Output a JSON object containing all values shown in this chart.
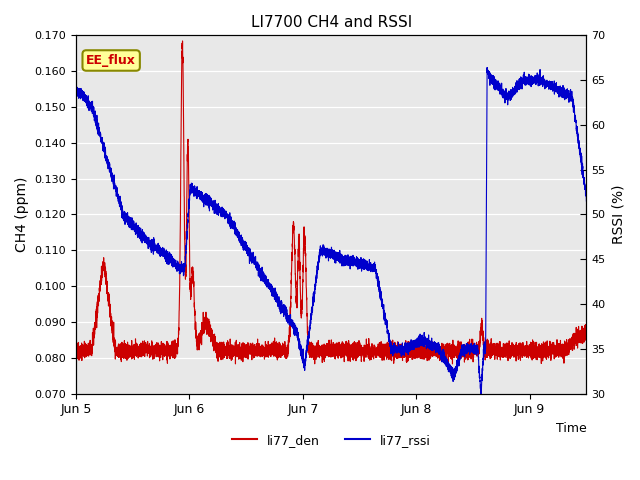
{
  "title": "LI7700 CH4 and RSSI",
  "ylabel_left": "CH4 (ppm)",
  "ylabel_right": "RSSI (%)",
  "xlabel": "Time",
  "ylim_left": [
    0.07,
    0.17
  ],
  "ylim_right": [
    30,
    70
  ],
  "yticks_left": [
    0.07,
    0.08,
    0.09,
    0.1,
    0.11,
    0.12,
    0.13,
    0.14,
    0.15,
    0.16,
    0.17
  ],
  "yticks_right": [
    30,
    35,
    40,
    45,
    50,
    55,
    60,
    65,
    70
  ],
  "color_den": "#cc0000",
  "color_rssi": "#0000cc",
  "label_den": "li77_den",
  "label_rssi": "li77_rssi",
  "annotation_text": "EE_flux",
  "annotation_color": "#cc0000",
  "annotation_bg": "#ffff99",
  "bg_color": "#e8e8e8",
  "xtick_labels": [
    "Jun 5",
    "Jun 6",
    "Jun 7",
    "Jun 8",
    "Jun 9"
  ],
  "xtick_positions": [
    0,
    1440,
    2880,
    4320,
    5760
  ],
  "total_minutes": 6480
}
